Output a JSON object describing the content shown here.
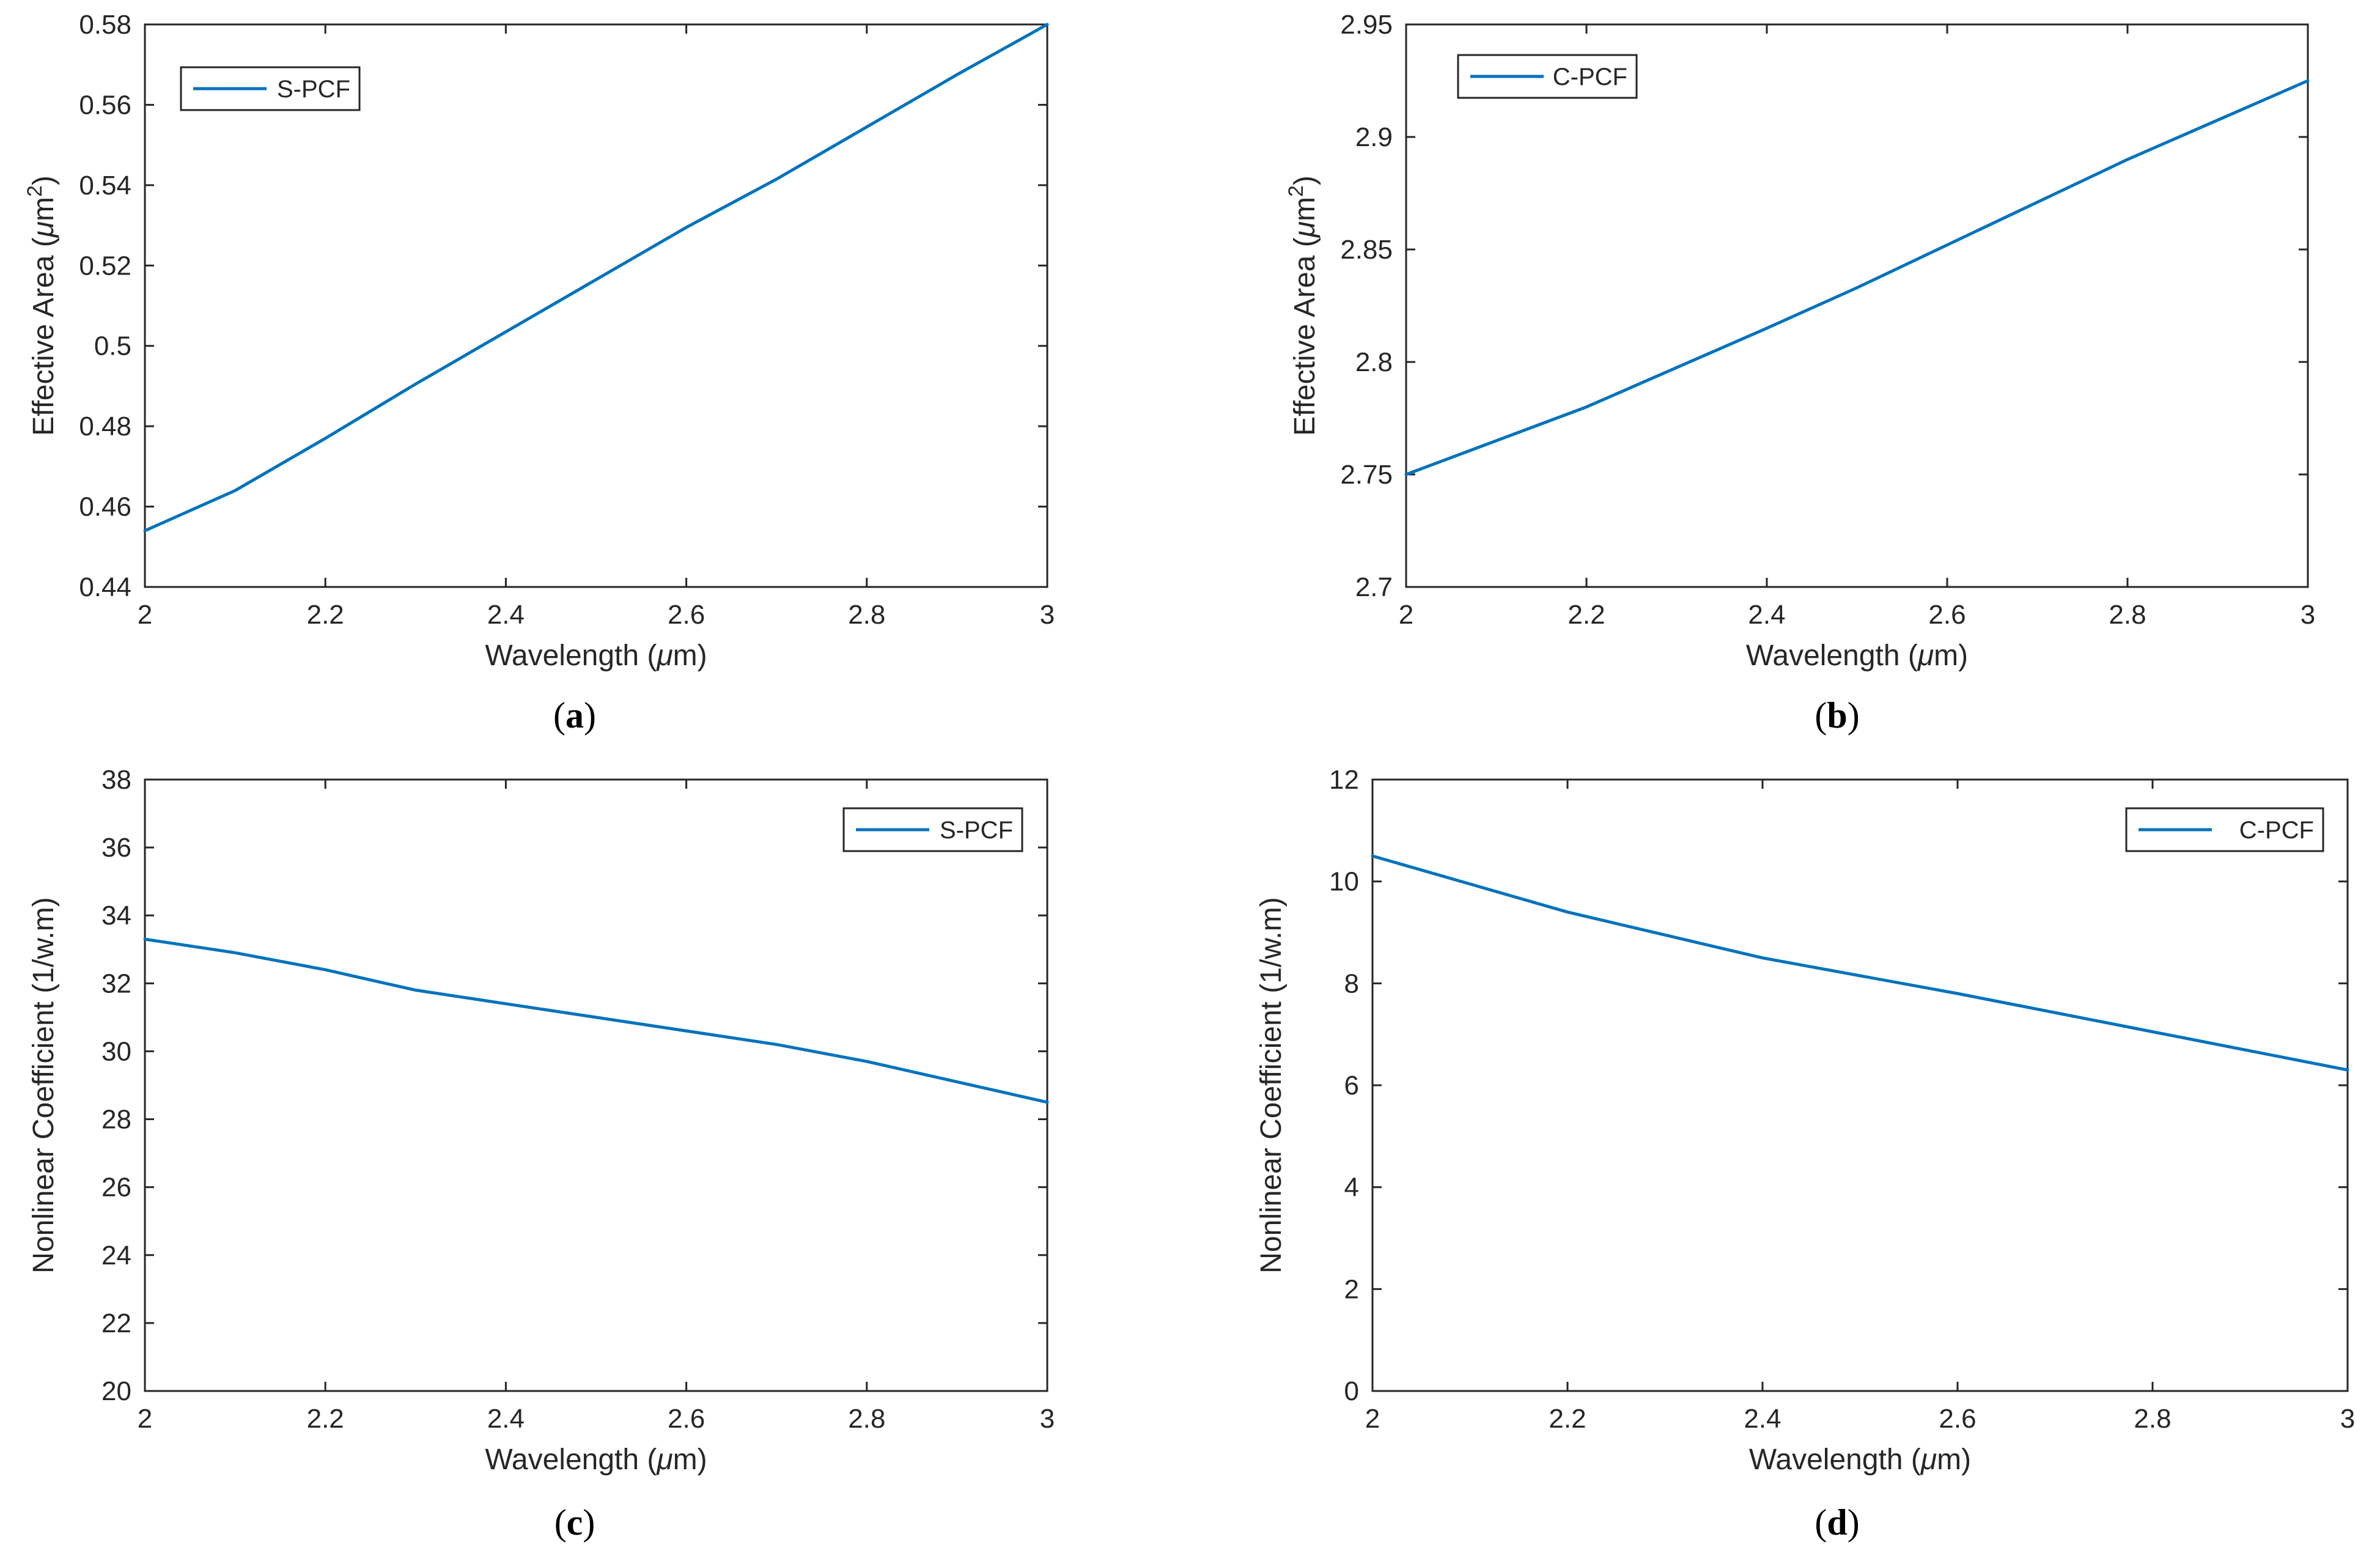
{
  "figure": {
    "line_color": "#0072BD",
    "axis_color": "#262626"
  },
  "chart_data": [
    {
      "id": "a",
      "type": "line",
      "caption": "a",
      "xlabel": "Wavelength (μm)",
      "ylabel": "Effective Area (μm²)",
      "xlim": [
        2,
        3
      ],
      "ylim": [
        0.44,
        0.58
      ],
      "xticks": [
        2,
        2.2,
        2.4,
        2.6,
        2.8,
        3
      ],
      "xtick_labels": [
        "2",
        "2.2",
        "2.4",
        "2.6",
        "2.8",
        "3"
      ],
      "yticks": [
        0.44,
        0.46,
        0.48,
        0.5,
        0.52,
        0.54,
        0.56,
        0.58
      ],
      "ytick_labels": [
        "0.44",
        "0.46",
        "0.48",
        "0.5",
        "0.52",
        "0.54",
        "0.56",
        "0.58"
      ],
      "legend": "top-left",
      "grid": false,
      "series": [
        {
          "name": "S-PCF",
          "x": [
            2,
            2.1,
            2.2,
            2.3,
            2.4,
            2.5,
            2.6,
            2.7,
            2.8,
            2.9,
            3
          ],
          "y": [
            0.454,
            0.464,
            0.477,
            0.4905,
            0.5035,
            0.5165,
            0.5295,
            0.5415,
            0.5545,
            0.5675,
            0.58
          ]
        }
      ]
    },
    {
      "id": "b",
      "type": "line",
      "caption": "b",
      "xlabel": "Wavelength (μm)",
      "ylabel": "Effective Area (μm²)",
      "xlim": [
        2,
        3
      ],
      "ylim": [
        2.7,
        2.95
      ],
      "xticks": [
        2,
        2.2,
        2.4,
        2.6,
        2.8,
        3
      ],
      "xtick_labels": [
        "2",
        "2.2",
        "2.4",
        "2.6",
        "2.8",
        "3"
      ],
      "yticks": [
        2.7,
        2.75,
        2.8,
        2.85,
        2.9,
        2.95
      ],
      "ytick_labels": [
        "2.7",
        "2.75",
        "2.8",
        "2.85",
        "2.9",
        "2.95"
      ],
      "legend": "top-left",
      "grid": false,
      "series": [
        {
          "name": "C-PCF",
          "x": [
            2,
            2.2,
            2.4,
            2.5,
            2.6,
            2.8,
            3
          ],
          "y": [
            2.75,
            2.78,
            2.815,
            2.833,
            2.852,
            2.89,
            2.925
          ]
        }
      ]
    },
    {
      "id": "c",
      "type": "line",
      "caption": "c",
      "xlabel": "Wavelength (μm)",
      "ylabel": "Nonlinear Coefficient (1/w.m)",
      "xlim": [
        2,
        3
      ],
      "ylim": [
        20,
        38
      ],
      "xticks": [
        2,
        2.2,
        2.4,
        2.6,
        2.8,
        3
      ],
      "xtick_labels": [
        "2",
        "2.2",
        "2.4",
        "2.6",
        "2.8",
        "3"
      ],
      "yticks": [
        20,
        22,
        24,
        26,
        28,
        30,
        32,
        34,
        36,
        38
      ],
      "ytick_labels": [
        "20",
        "22",
        "24",
        "26",
        "28",
        "30",
        "32",
        "34",
        "36",
        "38"
      ],
      "legend": "top-right",
      "grid": false,
      "series": [
        {
          "name": "S-PCF",
          "x": [
            2,
            2.1,
            2.2,
            2.3,
            2.4,
            2.5,
            2.6,
            2.7,
            2.8,
            2.9,
            3
          ],
          "y": [
            33.3,
            32.9,
            32.4,
            31.8,
            31.4,
            31.0,
            30.6,
            30.2,
            29.7,
            29.1,
            28.5
          ]
        }
      ]
    },
    {
      "id": "d",
      "type": "line",
      "caption": "d",
      "xlabel": "Wavelength (μm)",
      "ylabel": "Nonlinear Coefficient (1/w.m)",
      "xlim": [
        2,
        3
      ],
      "ylim": [
        0,
        12
      ],
      "xticks": [
        2,
        2.2,
        2.4,
        2.6,
        2.8,
        3
      ],
      "xtick_labels": [
        "2",
        "2.2",
        "2.4",
        "2.6",
        "2.8",
        "3"
      ],
      "yticks": [
        0,
        2,
        4,
        6,
        8,
        10,
        12
      ],
      "ytick_labels": [
        "0",
        "2",
        "4",
        "6",
        "8",
        "10",
        "12"
      ],
      "legend": "top-right",
      "grid": false,
      "series": [
        {
          "name": "C-PCF",
          "x": [
            2,
            2.2,
            2.4,
            2.6,
            2.8,
            3
          ],
          "y": [
            10.5,
            9.4,
            8.5,
            7.8,
            7.05,
            6.3
          ]
        }
      ]
    }
  ]
}
